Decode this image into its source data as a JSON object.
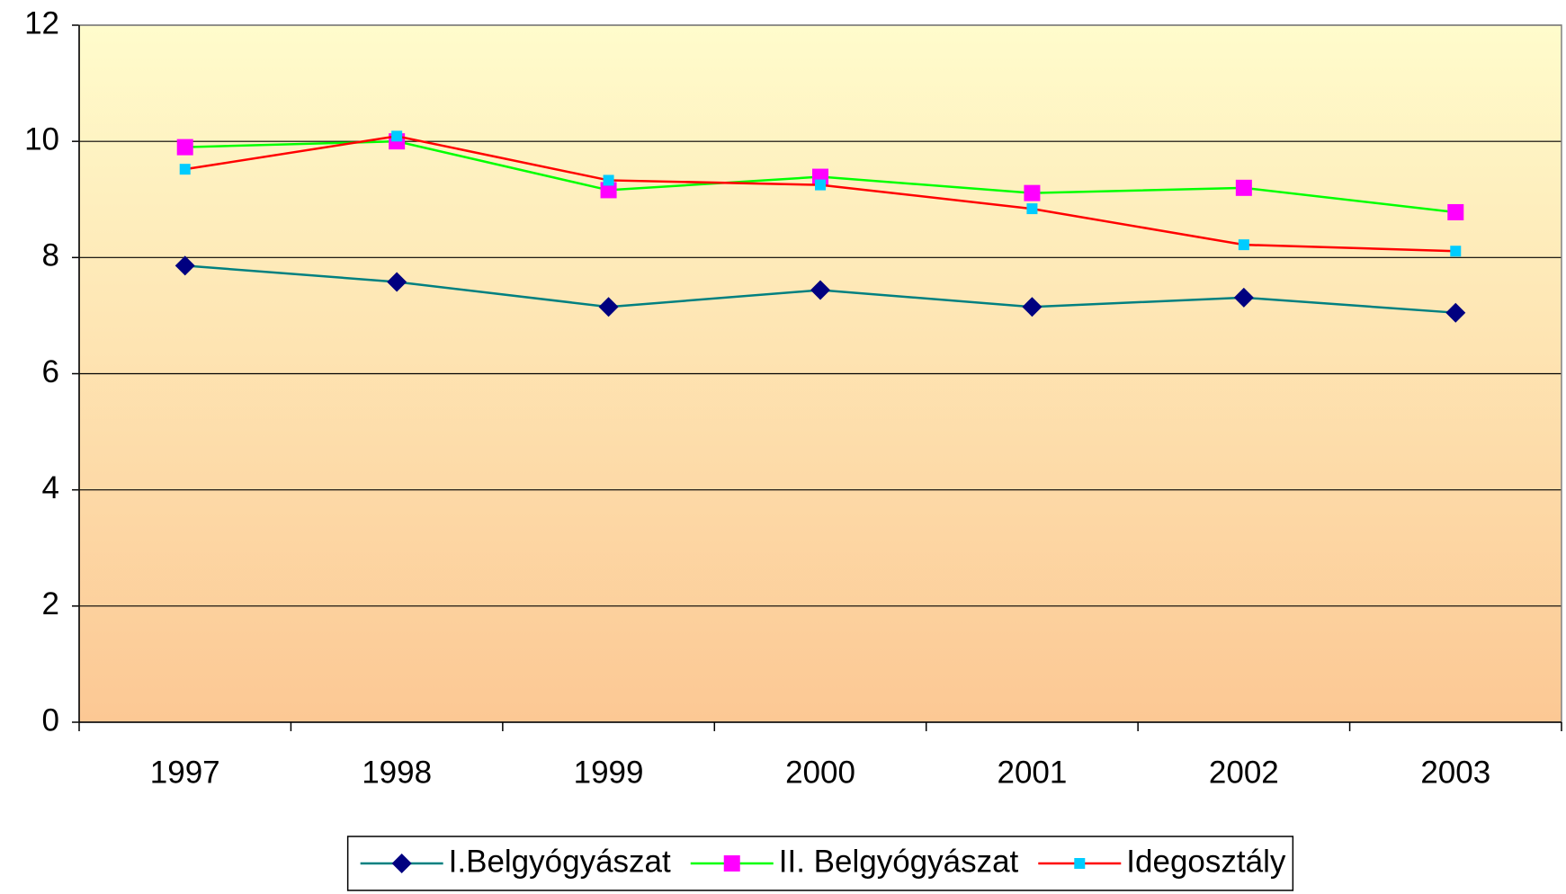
{
  "chart_data": {
    "type": "line",
    "categories": [
      "1997",
      "1998",
      "1999",
      "2000",
      "2001",
      "2002",
      "2003"
    ],
    "series": [
      {
        "name": "I.Belgyógyászat",
        "color": "#008080",
        "marker": "diamond",
        "marker_color": "#000080",
        "values": [
          7.86,
          7.58,
          7.15,
          7.44,
          7.15,
          7.31,
          7.05
        ]
      },
      {
        "name": "II. Belgyógyászat",
        "color": "#00ff00",
        "marker": "square",
        "marker_color": "#ff00ff",
        "values": [
          9.9,
          10.0,
          9.16,
          9.39,
          9.11,
          9.2,
          8.78
        ]
      },
      {
        "name": "Idegosztály",
        "color": "#ff0000",
        "marker": "small-square",
        "marker_color": "#00ccff",
        "values": [
          9.52,
          10.09,
          9.33,
          9.25,
          8.84,
          8.22,
          8.11
        ]
      }
    ],
    "ylim": [
      0,
      12
    ],
    "yticks": [
      0,
      2,
      4,
      6,
      8,
      10,
      12
    ],
    "grid": true,
    "legend": "bottom"
  }
}
